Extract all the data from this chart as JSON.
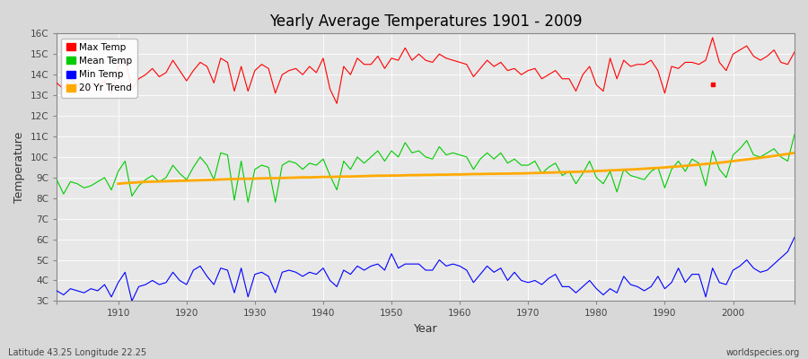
{
  "title": "Yearly Average Temperatures 1901 - 2009",
  "xlabel": "Year",
  "ylabel": "Temperature",
  "subtitle_left": "Latitude 43.25 Longitude 22.25",
  "subtitle_right": "worldspecies.org",
  "years": [
    1901,
    1902,
    1903,
    1904,
    1905,
    1906,
    1907,
    1908,
    1909,
    1910,
    1911,
    1912,
    1913,
    1914,
    1915,
    1916,
    1917,
    1918,
    1919,
    1920,
    1921,
    1922,
    1923,
    1924,
    1925,
    1926,
    1927,
    1928,
    1929,
    1930,
    1931,
    1932,
    1933,
    1934,
    1935,
    1936,
    1937,
    1938,
    1939,
    1940,
    1941,
    1942,
    1943,
    1944,
    1945,
    1946,
    1947,
    1948,
    1949,
    1950,
    1951,
    1952,
    1953,
    1954,
    1955,
    1956,
    1957,
    1958,
    1959,
    1960,
    1961,
    1962,
    1963,
    1964,
    1965,
    1966,
    1967,
    1968,
    1969,
    1970,
    1971,
    1972,
    1973,
    1974,
    1975,
    1976,
    1977,
    1978,
    1979,
    1980,
    1981,
    1982,
    1983,
    1984,
    1985,
    1986,
    1987,
    1988,
    1989,
    1990,
    1991,
    1992,
    1993,
    1994,
    1995,
    1996,
    1997,
    1998,
    1999,
    2000,
    2001,
    2002,
    2003,
    2004,
    2005,
    2006,
    2007,
    2008,
    2009
  ],
  "max_temp": [
    13.6,
    13.3,
    13.8,
    13.5,
    13.2,
    13.6,
    13.4,
    13.7,
    13.1,
    14.4,
    14.7,
    13.3,
    13.8,
    14.0,
    14.3,
    13.9,
    14.1,
    14.7,
    14.2,
    13.7,
    14.2,
    14.6,
    14.4,
    13.6,
    14.8,
    14.6,
    13.2,
    14.4,
    13.2,
    14.2,
    14.5,
    14.3,
    13.1,
    14.0,
    14.2,
    14.3,
    14.0,
    14.4,
    14.1,
    14.8,
    13.3,
    12.6,
    14.4,
    14.0,
    14.8,
    14.5,
    14.5,
    14.9,
    14.3,
    14.8,
    14.7,
    15.3,
    14.7,
    15.0,
    14.7,
    14.6,
    15.0,
    14.8,
    14.7,
    14.6,
    14.5,
    13.9,
    14.3,
    14.7,
    14.4,
    14.6,
    14.2,
    14.3,
    14.0,
    14.2,
    14.3,
    13.8,
    14.0,
    14.2,
    13.8,
    13.8,
    13.2,
    14.0,
    14.4,
    13.5,
    13.2,
    14.8,
    13.8,
    14.7,
    14.4,
    14.5,
    14.5,
    14.7,
    14.2,
    13.1,
    14.4,
    14.3,
    14.6,
    14.6,
    14.5,
    14.7,
    15.8,
    14.6,
    14.2,
    15.0,
    15.2,
    15.4,
    14.9,
    14.7,
    14.9,
    15.2,
    14.6,
    14.5,
    15.1
  ],
  "mean_temp": [
    8.9,
    8.2,
    8.8,
    8.7,
    8.5,
    8.6,
    8.8,
    9.0,
    8.4,
    9.3,
    9.8,
    8.1,
    8.6,
    8.9,
    9.1,
    8.8,
    9.0,
    9.6,
    9.2,
    8.9,
    9.5,
    10.0,
    9.6,
    8.9,
    10.2,
    10.1,
    7.9,
    9.8,
    7.8,
    9.4,
    9.6,
    9.5,
    7.8,
    9.6,
    9.8,
    9.7,
    9.4,
    9.7,
    9.6,
    9.9,
    9.1,
    8.4,
    9.8,
    9.4,
    10.0,
    9.7,
    10.0,
    10.3,
    9.8,
    10.3,
    10.0,
    10.7,
    10.2,
    10.3,
    10.0,
    9.9,
    10.5,
    10.1,
    10.2,
    10.1,
    10.0,
    9.4,
    9.9,
    10.2,
    9.9,
    10.2,
    9.7,
    9.9,
    9.6,
    9.6,
    9.8,
    9.2,
    9.5,
    9.7,
    9.1,
    9.3,
    8.7,
    9.2,
    9.8,
    9.0,
    8.7,
    9.3,
    8.3,
    9.4,
    9.1,
    9.0,
    8.9,
    9.3,
    9.5,
    8.5,
    9.4,
    9.8,
    9.3,
    9.9,
    9.7,
    8.6,
    10.3,
    9.4,
    9.0,
    10.1,
    10.4,
    10.8,
    10.1,
    10.0,
    10.2,
    10.4,
    10.0,
    9.8,
    11.1
  ],
  "min_temp": [
    3.5,
    3.3,
    3.6,
    3.5,
    3.4,
    3.6,
    3.5,
    3.8,
    3.2,
    3.9,
    4.4,
    3.0,
    3.7,
    3.8,
    4.0,
    3.8,
    3.9,
    4.4,
    4.0,
    3.8,
    4.5,
    4.7,
    4.2,
    3.8,
    4.6,
    4.5,
    3.4,
    4.6,
    3.2,
    4.3,
    4.4,
    4.2,
    3.4,
    4.4,
    4.5,
    4.4,
    4.2,
    4.4,
    4.3,
    4.6,
    4.0,
    3.7,
    4.5,
    4.3,
    4.7,
    4.5,
    4.7,
    4.8,
    4.5,
    5.3,
    4.6,
    4.8,
    4.8,
    4.8,
    4.5,
    4.5,
    5.0,
    4.7,
    4.8,
    4.7,
    4.5,
    3.9,
    4.3,
    4.7,
    4.4,
    4.6,
    4.0,
    4.4,
    4.0,
    3.9,
    4.0,
    3.8,
    4.1,
    4.3,
    3.7,
    3.7,
    3.4,
    3.7,
    4.0,
    3.6,
    3.3,
    3.6,
    3.4,
    4.2,
    3.8,
    3.7,
    3.5,
    3.7,
    4.2,
    3.6,
    3.9,
    4.6,
    3.9,
    4.3,
    4.3,
    3.2,
    4.6,
    3.9,
    3.8,
    4.5,
    4.7,
    5.0,
    4.6,
    4.4,
    4.5,
    4.8,
    5.1,
    5.4,
    6.1
  ],
  "trend_years": [
    1910,
    1911,
    1912,
    1913,
    1914,
    1915,
    1916,
    1917,
    1918,
    1919,
    1920,
    1921,
    1922,
    1923,
    1924,
    1925,
    1926,
    1927,
    1928,
    1929,
    1930,
    1931,
    1932,
    1933,
    1934,
    1935,
    1936,
    1937,
    1938,
    1939,
    1940,
    1941,
    1942,
    1943,
    1944,
    1945,
    1946,
    1947,
    1948,
    1949,
    1950,
    1951,
    1952,
    1953,
    1954,
    1955,
    1956,
    1957,
    1958,
    1959,
    1960,
    1961,
    1962,
    1963,
    1964,
    1965,
    1966,
    1967,
    1968,
    1969,
    1970,
    1971,
    1972,
    1973,
    1974,
    1975,
    1976,
    1977,
    1978,
    1979,
    1980,
    1981,
    1982,
    1983,
    1984,
    1985,
    1986,
    1987,
    1988,
    1989,
    1990,
    1991,
    1992,
    1993,
    1994,
    1995,
    1996,
    1997,
    1998,
    1999,
    2000,
    2001,
    2002,
    2003,
    2004,
    2005,
    2006,
    2007,
    2008,
    2009
  ],
  "trend_vals": [
    8.7,
    8.73,
    8.75,
    8.77,
    8.79,
    8.8,
    8.81,
    8.82,
    8.83,
    8.84,
    8.85,
    8.86,
    8.87,
    8.88,
    8.89,
    8.91,
    8.92,
    8.93,
    8.94,
    8.94,
    8.95,
    8.96,
    8.97,
    8.97,
    8.98,
    8.99,
    9.0,
    9.01,
    9.01,
    9.02,
    9.03,
    9.03,
    9.04,
    9.05,
    9.05,
    9.06,
    9.07,
    9.08,
    9.09,
    9.09,
    9.1,
    9.1,
    9.11,
    9.12,
    9.12,
    9.13,
    9.13,
    9.14,
    9.14,
    9.15,
    9.15,
    9.16,
    9.17,
    9.17,
    9.18,
    9.18,
    9.19,
    9.19,
    9.2,
    9.2,
    9.21,
    9.22,
    9.23,
    9.24,
    9.25,
    9.26,
    9.27,
    9.28,
    9.29,
    9.3,
    9.32,
    9.33,
    9.35,
    9.36,
    9.38,
    9.39,
    9.41,
    9.43,
    9.45,
    9.47,
    9.49,
    9.52,
    9.54,
    9.57,
    9.6,
    9.63,
    9.66,
    9.69,
    9.72,
    9.76,
    9.8,
    9.84,
    9.88,
    9.92,
    9.96,
    10.01,
    10.05,
    10.1,
    10.15,
    10.2
  ],
  "ylim": [
    3.0,
    16.0
  ],
  "yticks": [
    3,
    4,
    5,
    6,
    7,
    8,
    9,
    10,
    11,
    12,
    13,
    14,
    15,
    16
  ],
  "ytick_labels": [
    "3C",
    "4C",
    "5C",
    "6C",
    "7C",
    "8C",
    "9C",
    "10C",
    "11C",
    "12C",
    "13C",
    "14C",
    "15C",
    "16C"
  ],
  "xticks": [
    1901,
    1910,
    1920,
    1930,
    1940,
    1950,
    1960,
    1970,
    1980,
    1990,
    2000,
    2009
  ],
  "xtick_labels": [
    "",
    "1910",
    "1920",
    "1930",
    "1940",
    "1950",
    "1960",
    "1970",
    "1980",
    "1990",
    "2000",
    ""
  ],
  "max_color": "#ff0000",
  "mean_color": "#00cc00",
  "min_color": "#0000ff",
  "trend_color": "#ffaa00",
  "bg_color": "#d8d8d8",
  "plot_bg": "#e8e8e8",
  "grid_color": "#ffffff",
  "legend_loc": "upper left",
  "isolated_point_year": 1997,
  "isolated_point_val": 13.55
}
